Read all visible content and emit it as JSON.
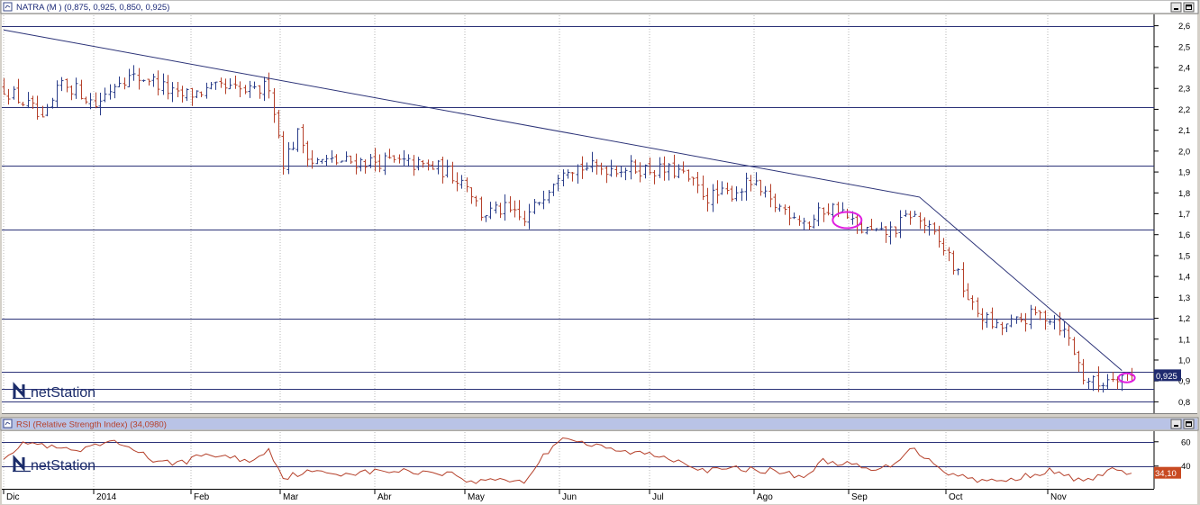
{
  "price_panel": {
    "title": "NATRA (M ) (0,875, 0,925, 0,850, 0,925)",
    "last_value": "0,925",
    "watermark": "netStation",
    "min_icon": "minimize-icon",
    "max_icon": "maximize-icon"
  },
  "rsi_panel": {
    "title": "RSI (Relative Strength Index) (34,0980)",
    "last_value": "34,10",
    "watermark": "netStation",
    "min_icon": "minimize-icon",
    "max_icon": "maximize-icon"
  },
  "colors": {
    "up_bar": "#2b3e8a",
    "down_bar": "#b5402a",
    "trendline": "#2c3378",
    "hline": "#2c3378",
    "rsi_line": "#b5402a",
    "marker": "#e01fe0",
    "label_bg": "#1f2a6e",
    "rsi_label_bg": "#c84a22"
  },
  "chart_data": [
    {
      "type": "ohlc",
      "ylim": [
        0.75,
        2.65
      ],
      "y_ticks": [
        "2,6",
        "2,5",
        "2,4",
        "2,3",
        "2,2",
        "2,1",
        "2,0",
        "1,9",
        "1,8",
        "1,7",
        "1,6",
        "1,5",
        "1,4",
        "1,3",
        "1,2",
        "1,1",
        "1,0",
        "0,9",
        "0,8"
      ],
      "x_labels": [
        "Dic",
        "2014",
        "Feb",
        "Mar",
        "Abr",
        "May",
        "Jun",
        "Jul",
        "Ago",
        "Sep",
        "Oct",
        "Nov"
      ],
      "horizontal_levels": [
        2.6,
        2.21,
        1.93,
        1.625,
        1.2,
        0.945,
        0.86,
        0.8
      ],
      "trendline_points": [
        [
          0,
          2.58
        ],
        [
          190,
          1.78
        ],
        [
          232,
          0.95
        ]
      ],
      "ellipse_markers": [
        [
          175,
          1.67
        ],
        [
          233,
          0.915
        ]
      ],
      "anchors": [
        [
          0,
          2.3
        ],
        [
          6,
          2.2
        ],
        [
          8,
          2.13
        ],
        [
          12,
          2.33
        ],
        [
          16,
          2.28
        ],
        [
          19,
          2.22
        ],
        [
          24,
          2.35
        ],
        [
          30,
          2.35
        ],
        [
          36,
          2.26
        ],
        [
          40,
          2.28
        ],
        [
          45,
          2.3
        ],
        [
          52,
          2.28
        ],
        [
          55,
          2.32
        ],
        [
          58,
          1.95
        ],
        [
          61,
          2.08
        ],
        [
          64,
          1.95
        ],
        [
          70,
          1.95
        ],
        [
          80,
          1.95
        ],
        [
          90,
          1.92
        ],
        [
          96,
          1.85
        ],
        [
          99,
          1.7
        ],
        [
          104,
          1.72
        ],
        [
          108,
          1.66
        ],
        [
          112,
          1.8
        ],
        [
          116,
          1.93
        ],
        [
          122,
          1.92
        ],
        [
          130,
          1.92
        ],
        [
          140,
          1.9
        ],
        [
          146,
          1.78
        ],
        [
          151,
          1.8
        ],
        [
          155,
          1.85
        ],
        [
          159,
          1.75
        ],
        [
          164,
          1.7
        ],
        [
          167,
          1.65
        ],
        [
          170,
          1.72
        ],
        [
          173,
          1.73
        ],
        [
          177,
          1.63
        ],
        [
          182,
          1.6
        ],
        [
          185,
          1.63
        ],
        [
          188,
          1.7
        ],
        [
          191,
          1.65
        ],
        [
          196,
          1.5
        ],
        [
          201,
          1.25
        ],
        [
          206,
          1.15
        ],
        [
          210,
          1.18
        ],
        [
          214,
          1.22
        ],
        [
          218,
          1.2
        ],
        [
          221,
          1.1
        ],
        [
          224,
          0.92
        ],
        [
          227,
          0.88
        ],
        [
          230,
          0.93
        ],
        [
          234,
          0.925
        ]
      ]
    },
    {
      "type": "line",
      "ylim": [
        22,
        68
      ],
      "y_ticks": [
        "60",
        "40"
      ],
      "horizontal_levels": [
        60,
        40
      ],
      "anchors": [
        [
          0,
          48
        ],
        [
          5,
          60
        ],
        [
          10,
          55
        ],
        [
          16,
          52
        ],
        [
          22,
          60
        ],
        [
          27,
          55
        ],
        [
          32,
          42
        ],
        [
          38,
          44
        ],
        [
          42,
          50
        ],
        [
          47,
          47
        ],
        [
          52,
          44
        ],
        [
          55,
          55
        ],
        [
          58,
          30
        ],
        [
          62,
          35
        ],
        [
          70,
          34
        ],
        [
          80,
          36
        ],
        [
          90,
          35
        ],
        [
          94,
          33
        ],
        [
          97,
          26
        ],
        [
          102,
          30
        ],
        [
          108,
          27
        ],
        [
          112,
          48
        ],
        [
          116,
          65
        ],
        [
          121,
          58
        ],
        [
          128,
          52
        ],
        [
          134,
          50
        ],
        [
          140,
          45
        ],
        [
          146,
          36
        ],
        [
          152,
          38
        ],
        [
          160,
          36
        ],
        [
          166,
          31
        ],
        [
          170,
          44
        ],
        [
          175,
          42
        ],
        [
          180,
          36
        ],
        [
          184,
          40
        ],
        [
          188,
          55
        ],
        [
          192,
          46
        ],
        [
          196,
          34
        ],
        [
          202,
          29
        ],
        [
          207,
          27
        ],
        [
          212,
          32
        ],
        [
          217,
          36
        ],
        [
          221,
          31
        ],
        [
          226,
          27
        ],
        [
          229,
          38
        ],
        [
          234,
          34
        ]
      ]
    }
  ]
}
